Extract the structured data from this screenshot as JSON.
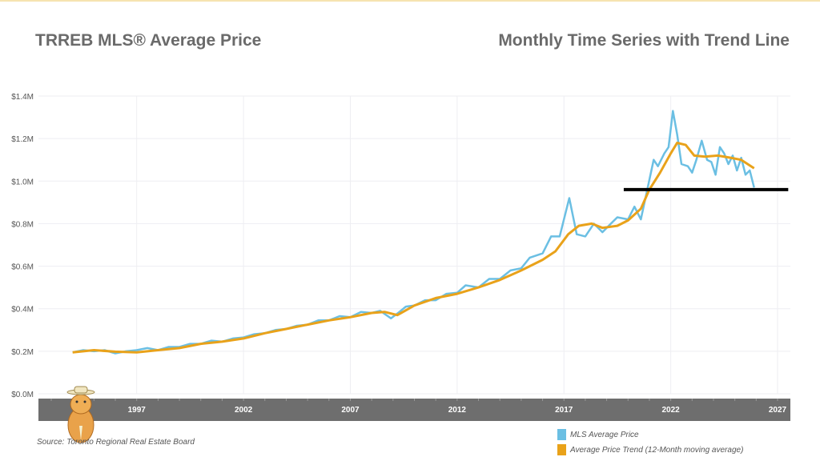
{
  "title": "TRREB MLS® Average Price",
  "subtitle": "Monthly Time Series with Trend Line",
  "source": "Source: Toronto Regional Real Estate Board",
  "colors": {
    "mls": "#6bbfe3",
    "trend": "#e9a21a",
    "axis_band": "#6e6e6e",
    "annotation": "#000000"
  },
  "chart_data": {
    "type": "line",
    "title": "TRREB MLS® Average Price",
    "xlim": [
      1992.4,
      2027.6
    ],
    "ylim": [
      0,
      1.4
    ],
    "grid": true,
    "legend_placement": "bottom-right",
    "x_ticks": [
      "1997",
      "2002",
      "2007",
      "2012",
      "2017",
      "2022",
      "2027"
    ],
    "y_ticks": [
      "$0.0M",
      "$0.2M",
      "$0.4M",
      "$0.6M",
      "$0.8M",
      "$1.0M",
      "$1.2M",
      "$1.4M"
    ],
    "series": [
      {
        "name": "MLS Average Price",
        "color": "#6bbfe3",
        "points": [
          [
            1994.0,
            0.195
          ],
          [
            1994.5,
            0.205
          ],
          [
            1995,
            0.2
          ],
          [
            1995.5,
            0.205
          ],
          [
            1996,
            0.19
          ],
          [
            1996.5,
            0.2
          ],
          [
            1997,
            0.205
          ],
          [
            1997.5,
            0.215
          ],
          [
            1998,
            0.205
          ],
          [
            1998.5,
            0.22
          ],
          [
            1999,
            0.22
          ],
          [
            1999.5,
            0.235
          ],
          [
            2000,
            0.235
          ],
          [
            2000.5,
            0.25
          ],
          [
            2001,
            0.245
          ],
          [
            2001.5,
            0.26
          ],
          [
            2002,
            0.265
          ],
          [
            2002.5,
            0.28
          ],
          [
            2003,
            0.285
          ],
          [
            2003.5,
            0.3
          ],
          [
            2004,
            0.305
          ],
          [
            2004.5,
            0.32
          ],
          [
            2005,
            0.325
          ],
          [
            2005.5,
            0.345
          ],
          [
            2006,
            0.345
          ],
          [
            2006.5,
            0.365
          ],
          [
            2007,
            0.36
          ],
          [
            2007.5,
            0.385
          ],
          [
            2008,
            0.38
          ],
          [
            2008.4,
            0.39
          ],
          [
            2008.9,
            0.355
          ],
          [
            2009.3,
            0.385
          ],
          [
            2009.6,
            0.41
          ],
          [
            2010,
            0.415
          ],
          [
            2010.5,
            0.44
          ],
          [
            2011,
            0.44
          ],
          [
            2011.5,
            0.47
          ],
          [
            2012,
            0.475
          ],
          [
            2012.4,
            0.51
          ],
          [
            2013,
            0.5
          ],
          [
            2013.5,
            0.54
          ],
          [
            2014,
            0.54
          ],
          [
            2014.5,
            0.58
          ],
          [
            2015,
            0.59
          ],
          [
            2015.4,
            0.64
          ],
          [
            2016,
            0.66
          ],
          [
            2016.4,
            0.74
          ],
          [
            2016.8,
            0.74
          ],
          [
            2017.25,
            0.92
          ],
          [
            2017.6,
            0.75
          ],
          [
            2018,
            0.74
          ],
          [
            2018.4,
            0.8
          ],
          [
            2018.8,
            0.76
          ],
          [
            2019.2,
            0.8
          ],
          [
            2019.5,
            0.83
          ],
          [
            2020,
            0.82
          ],
          [
            2020.3,
            0.88
          ],
          [
            2020.6,
            0.82
          ],
          [
            2020.9,
            0.96
          ],
          [
            2021.2,
            1.1
          ],
          [
            2021.4,
            1.07
          ],
          [
            2021.7,
            1.13
          ],
          [
            2021.9,
            1.16
          ],
          [
            2022.1,
            1.33
          ],
          [
            2022.3,
            1.22
          ],
          [
            2022.5,
            1.08
          ],
          [
            2022.8,
            1.07
          ],
          [
            2023.0,
            1.04
          ],
          [
            2023.2,
            1.1
          ],
          [
            2023.45,
            1.19
          ],
          [
            2023.7,
            1.1
          ],
          [
            2023.9,
            1.09
          ],
          [
            2024.1,
            1.03
          ],
          [
            2024.3,
            1.16
          ],
          [
            2024.5,
            1.13
          ],
          [
            2024.7,
            1.08
          ],
          [
            2024.9,
            1.12
          ],
          [
            2025.1,
            1.05
          ],
          [
            2025.3,
            1.11
          ],
          [
            2025.5,
            1.03
          ],
          [
            2025.7,
            1.05
          ],
          [
            2025.9,
            0.97
          ]
        ]
      },
      {
        "name": "Average Price Trend (12-Month moving average)",
        "color": "#e9a21a",
        "points": [
          [
            1994.0,
            0.195
          ],
          [
            1995,
            0.205
          ],
          [
            1996,
            0.198
          ],
          [
            1997,
            0.195
          ],
          [
            1998,
            0.205
          ],
          [
            1999,
            0.215
          ],
          [
            2000,
            0.235
          ],
          [
            2001,
            0.245
          ],
          [
            2002,
            0.26
          ],
          [
            2003,
            0.285
          ],
          [
            2004,
            0.305
          ],
          [
            2005,
            0.325
          ],
          [
            2006,
            0.345
          ],
          [
            2007,
            0.36
          ],
          [
            2008,
            0.38
          ],
          [
            2008.6,
            0.385
          ],
          [
            2009.2,
            0.37
          ],
          [
            2010,
            0.415
          ],
          [
            2011,
            0.45
          ],
          [
            2012,
            0.47
          ],
          [
            2013,
            0.5
          ],
          [
            2014,
            0.535
          ],
          [
            2015,
            0.58
          ],
          [
            2016,
            0.63
          ],
          [
            2016.6,
            0.67
          ],
          [
            2017.2,
            0.75
          ],
          [
            2017.7,
            0.79
          ],
          [
            2018.3,
            0.8
          ],
          [
            2018.8,
            0.78
          ],
          [
            2019.5,
            0.79
          ],
          [
            2020,
            0.815
          ],
          [
            2020.6,
            0.87
          ],
          [
            2021.0,
            0.96
          ],
          [
            2021.5,
            1.04
          ],
          [
            2022.0,
            1.13
          ],
          [
            2022.3,
            1.18
          ],
          [
            2022.7,
            1.17
          ],
          [
            2023.1,
            1.12
          ],
          [
            2023.6,
            1.115
          ],
          [
            2024.2,
            1.12
          ],
          [
            2024.8,
            1.11
          ],
          [
            2025.3,
            1.1
          ],
          [
            2025.9,
            1.06
          ]
        ]
      }
    ],
    "annotation_line": {
      "y": 0.96,
      "x": [
        2019.8,
        2027.5
      ]
    }
  }
}
